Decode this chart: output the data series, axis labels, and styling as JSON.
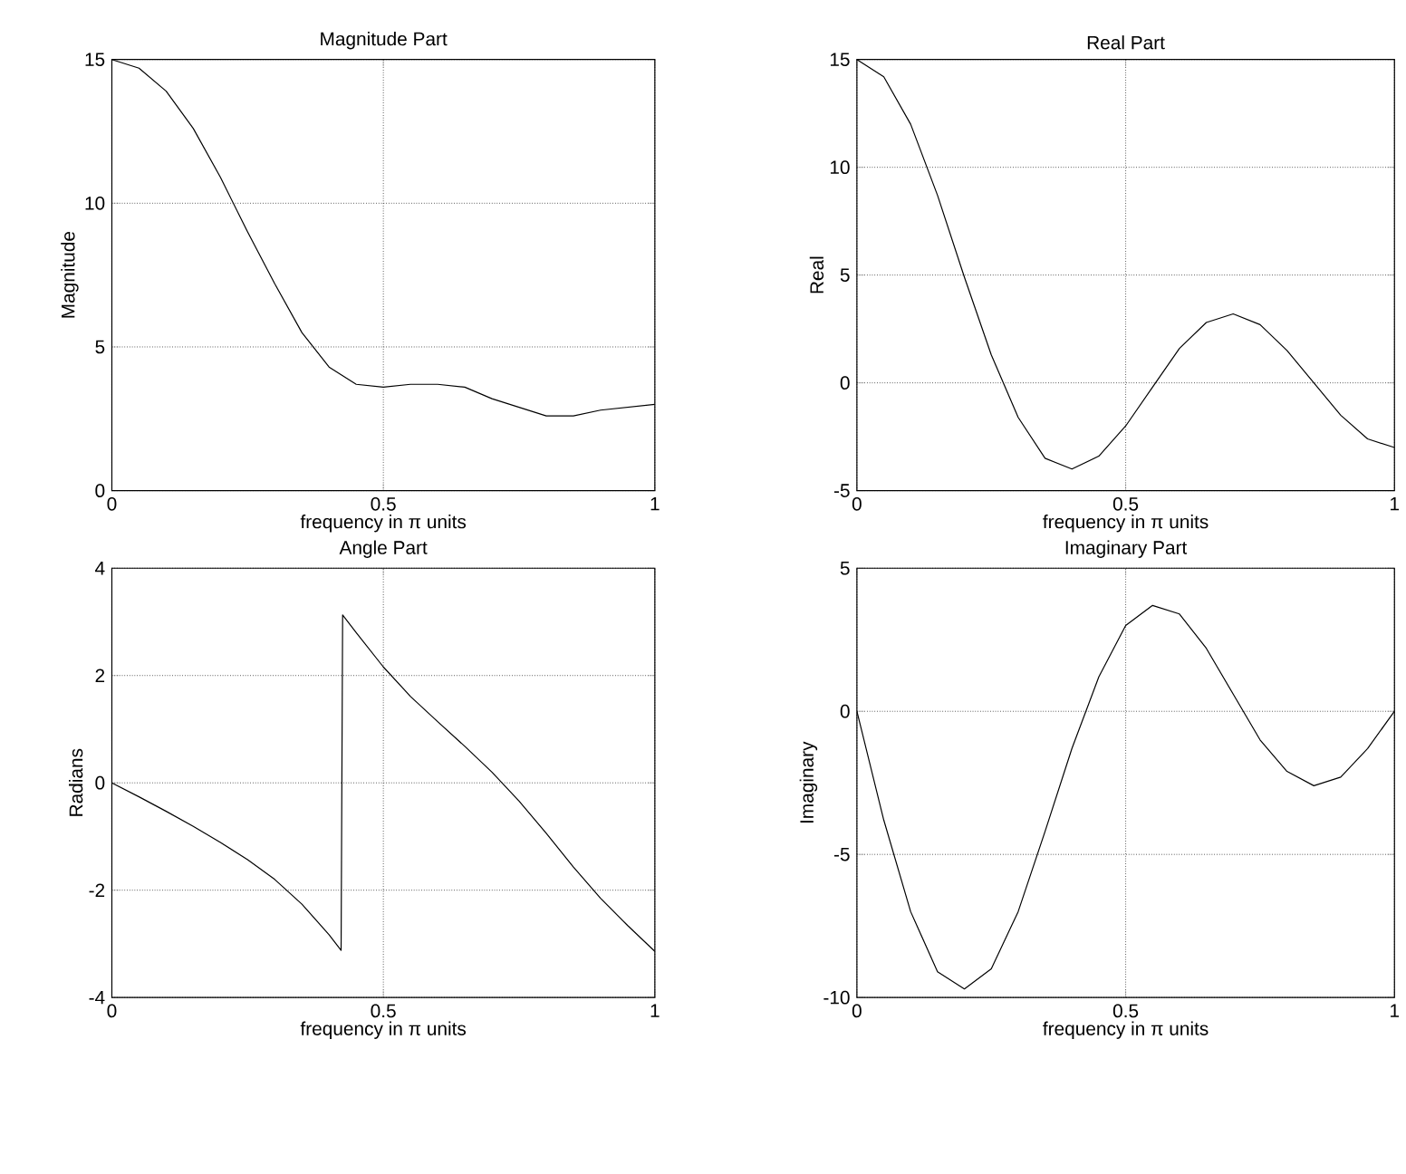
{
  "chart_data": [
    {
      "type": "line",
      "title": "Magnitude Part",
      "xlabel": "frequency in π units",
      "ylabel": "Magnitude",
      "color": "#000000",
      "grid": true,
      "x": [
        0,
        0.05,
        0.1,
        0.15,
        0.2,
        0.25,
        0.3,
        0.35,
        0.4,
        0.45,
        0.5,
        0.55,
        0.6,
        0.65,
        0.7,
        0.75,
        0.8,
        0.85,
        0.9,
        0.95,
        1
      ],
      "values": [
        15,
        14.7,
        13.9,
        12.6,
        10.9,
        9.0,
        7.2,
        5.5,
        4.3,
        3.7,
        3.6,
        3.7,
        3.7,
        3.6,
        3.2,
        2.9,
        2.6,
        2.6,
        2.8,
        2.9,
        3
      ],
      "xlim": [
        0,
        1
      ],
      "ylim": [
        0,
        15
      ],
      "xticks": [
        0,
        0.5,
        1
      ],
      "yticks": [
        0,
        5,
        10,
        15
      ]
    },
    {
      "type": "line",
      "title": "Real Part",
      "xlabel": "frequency in π units",
      "ylabel": "Real",
      "color": "#000000",
      "grid": true,
      "x": [
        0,
        0.05,
        0.1,
        0.15,
        0.2,
        0.25,
        0.3,
        0.35,
        0.4,
        0.45,
        0.5,
        0.55,
        0.6,
        0.65,
        0.7,
        0.75,
        0.8,
        0.85,
        0.9,
        0.95,
        1
      ],
      "values": [
        15,
        14.2,
        12.0,
        8.7,
        4.9,
        1.3,
        -1.6,
        -3.5,
        -4.0,
        -3.4,
        -2,
        -0.2,
        1.6,
        2.8,
        3.2,
        2.7,
        1.5,
        0,
        -1.5,
        -2.6,
        -3
      ],
      "xlim": [
        0,
        1
      ],
      "ylim": [
        -5,
        15
      ],
      "xticks": [
        0,
        0.5,
        1
      ],
      "yticks": [
        -5,
        0,
        5,
        10,
        15
      ]
    },
    {
      "type": "line",
      "title": "Angle Part",
      "xlabel": "frequency in π units",
      "ylabel": "Radians",
      "color": "#000000",
      "grid": true,
      "x": [
        0,
        0.05,
        0.1,
        0.15,
        0.2,
        0.25,
        0.3,
        0.35,
        0.4,
        0.4222,
        0.425,
        0.45,
        0.5,
        0.55,
        0.6,
        0.65,
        0.7,
        0.75,
        0.8,
        0.85,
        0.9,
        0.95,
        1
      ],
      "values": [
        0,
        -0.26,
        -0.53,
        -0.81,
        -1.11,
        -1.43,
        -1.8,
        -2.26,
        -2.83,
        -3.12,
        3.13,
        2.8,
        2.16,
        1.61,
        1.14,
        0.68,
        0.2,
        -0.34,
        -0.94,
        -1.57,
        -2.15,
        -2.66,
        -3.14
      ],
      "xlim": [
        0,
        1
      ],
      "ylim": [
        -4,
        4
      ],
      "xticks": [
        0,
        0.5,
        1
      ],
      "yticks": [
        -4,
        -2,
        0,
        2,
        4
      ]
    },
    {
      "type": "line",
      "title": "Imaginary Part",
      "xlabel": "frequency in π units",
      "ylabel": "Imaginary",
      "color": "#000000",
      "grid": true,
      "x": [
        0,
        0.05,
        0.1,
        0.15,
        0.2,
        0.25,
        0.3,
        0.35,
        0.4,
        0.45,
        0.5,
        0.55,
        0.6,
        0.65,
        0.7,
        0.75,
        0.8,
        0.85,
        0.9,
        0.95,
        1
      ],
      "values": [
        0,
        -3.8,
        -7.0,
        -9.1,
        -9.7,
        -9.0,
        -7.0,
        -4.2,
        -1.3,
        1.2,
        3,
        3.7,
        3.4,
        2.2,
        0.6,
        -1.0,
        -2.1,
        -2.6,
        -2.3,
        -1.3,
        0
      ],
      "xlim": [
        0,
        1
      ],
      "ylim": [
        -10,
        5
      ],
      "xticks": [
        0,
        0.5,
        1
      ],
      "yticks": [
        -10,
        -5,
        0,
        5
      ]
    }
  ]
}
